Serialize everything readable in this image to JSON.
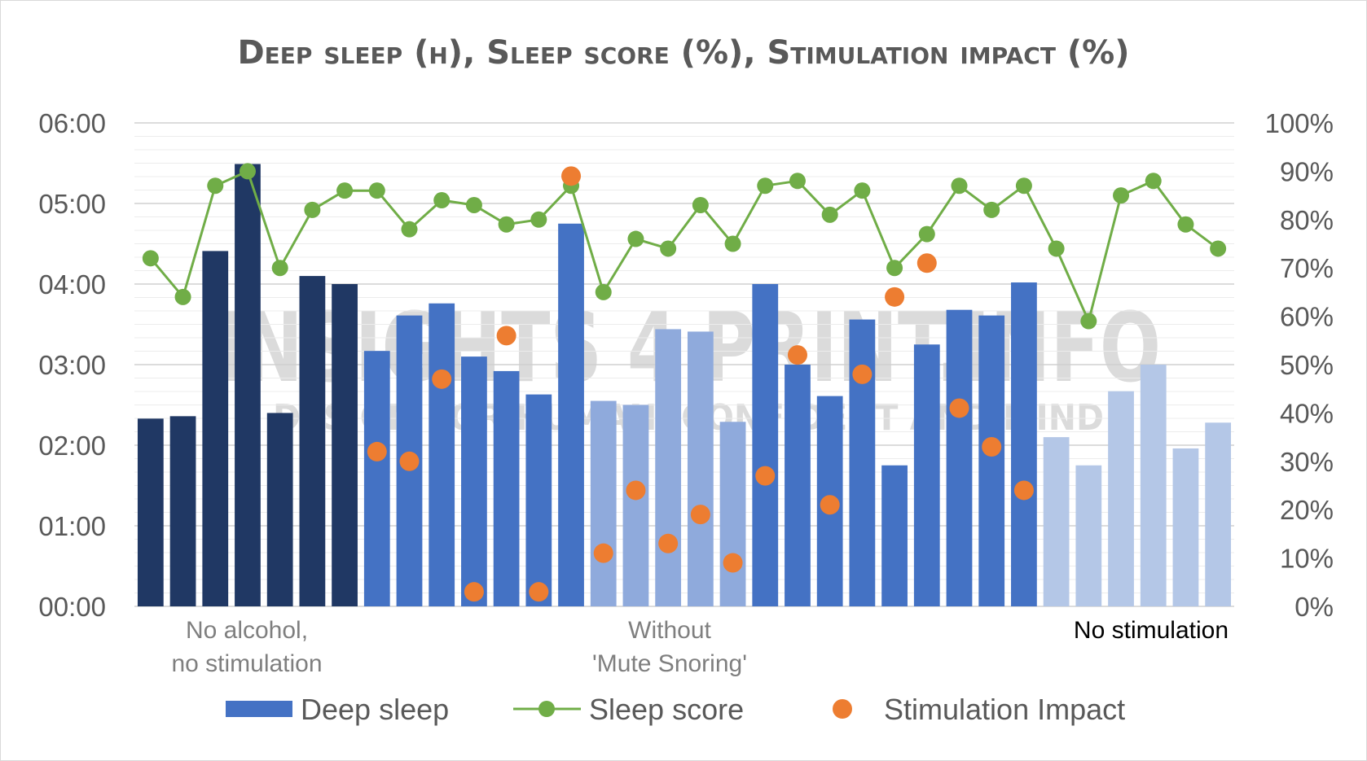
{
  "chart_data": {
    "type": "bar",
    "title": "Deep sleep (h), Sleep score (%), Stimulation impact (%)",
    "y_left": {
      "range_hours": [
        0,
        6
      ],
      "ticks": [
        "00:00",
        "01:00",
        "02:00",
        "03:00",
        "04:00",
        "05:00",
        "06:00"
      ]
    },
    "y_right": {
      "range_pct": [
        0,
        100
      ],
      "ticks": [
        "0%",
        "10%",
        "20%",
        "30%",
        "40%",
        "50%",
        "60%",
        "70%",
        "80%",
        "90%",
        "100%"
      ]
    },
    "group_labels": [
      {
        "lines": [
          "No alcohol,",
          "no stimulation"
        ],
        "highlight": false
      },
      {
        "lines": [
          "Without",
          "'Mute Snoring'"
        ],
        "highlight": false
      },
      {
        "lines": [
          "No stimulation"
        ],
        "highlight": true
      }
    ],
    "bar_colors": {
      "dark": "#203864",
      "mid": "#4472c4",
      "light": "#8faadc",
      "pale": "#b4c7e7"
    },
    "line_color": "#70ad47",
    "scatter_color": "#ed7d31",
    "series": [
      {
        "name": "Deep sleep",
        "kind": "bar",
        "values_hours": [
          2.33,
          2.36,
          4.41,
          5.49,
          2.4,
          4.1,
          4.0,
          3.17,
          3.61,
          3.76,
          3.1,
          2.92,
          2.63,
          4.75,
          2.55,
          2.5,
          3.44,
          3.41,
          2.29,
          4.0,
          3.0,
          2.61,
          3.56,
          1.75,
          3.25,
          3.68,
          3.61,
          4.02,
          2.1,
          1.75,
          2.67,
          3.0,
          1.96,
          2.28
        ],
        "color_keys": [
          "dark",
          "dark",
          "dark",
          "dark",
          "dark",
          "dark",
          "dark",
          "mid",
          "mid",
          "mid",
          "mid",
          "mid",
          "mid",
          "mid",
          "light",
          "light",
          "light",
          "light",
          "light",
          "mid",
          "mid",
          "mid",
          "mid",
          "mid",
          "mid",
          "mid",
          "mid",
          "mid",
          "pale",
          "pale",
          "pale",
          "pale",
          "pale",
          "pale"
        ]
      },
      {
        "name": "Sleep score",
        "kind": "line",
        "values_pct": [
          72,
          64,
          87,
          90,
          70,
          82,
          86,
          86,
          78,
          84,
          83,
          79,
          80,
          87,
          65,
          76,
          74,
          83,
          75,
          87,
          88,
          81,
          86,
          70,
          77,
          87,
          82,
          87,
          74,
          59,
          85,
          88,
          79,
          74
        ]
      },
      {
        "name": "Stimulation Impact",
        "kind": "scatter",
        "values_pct": [
          null,
          null,
          null,
          null,
          null,
          null,
          null,
          32,
          30,
          47,
          3,
          56,
          3,
          89,
          11,
          24,
          13,
          19,
          9,
          27,
          52,
          21,
          48,
          64,
          71,
          41,
          33,
          24,
          null,
          null,
          null,
          null,
          null,
          null
        ]
      }
    ],
    "legend": {
      "position": "bottom"
    }
  },
  "watermark": {
    "line1": "INSIGHTS 4 PRINT.INFO",
    "line2": "DESIGN FOR HUMAN, CONFIDENT AND MIND"
  }
}
